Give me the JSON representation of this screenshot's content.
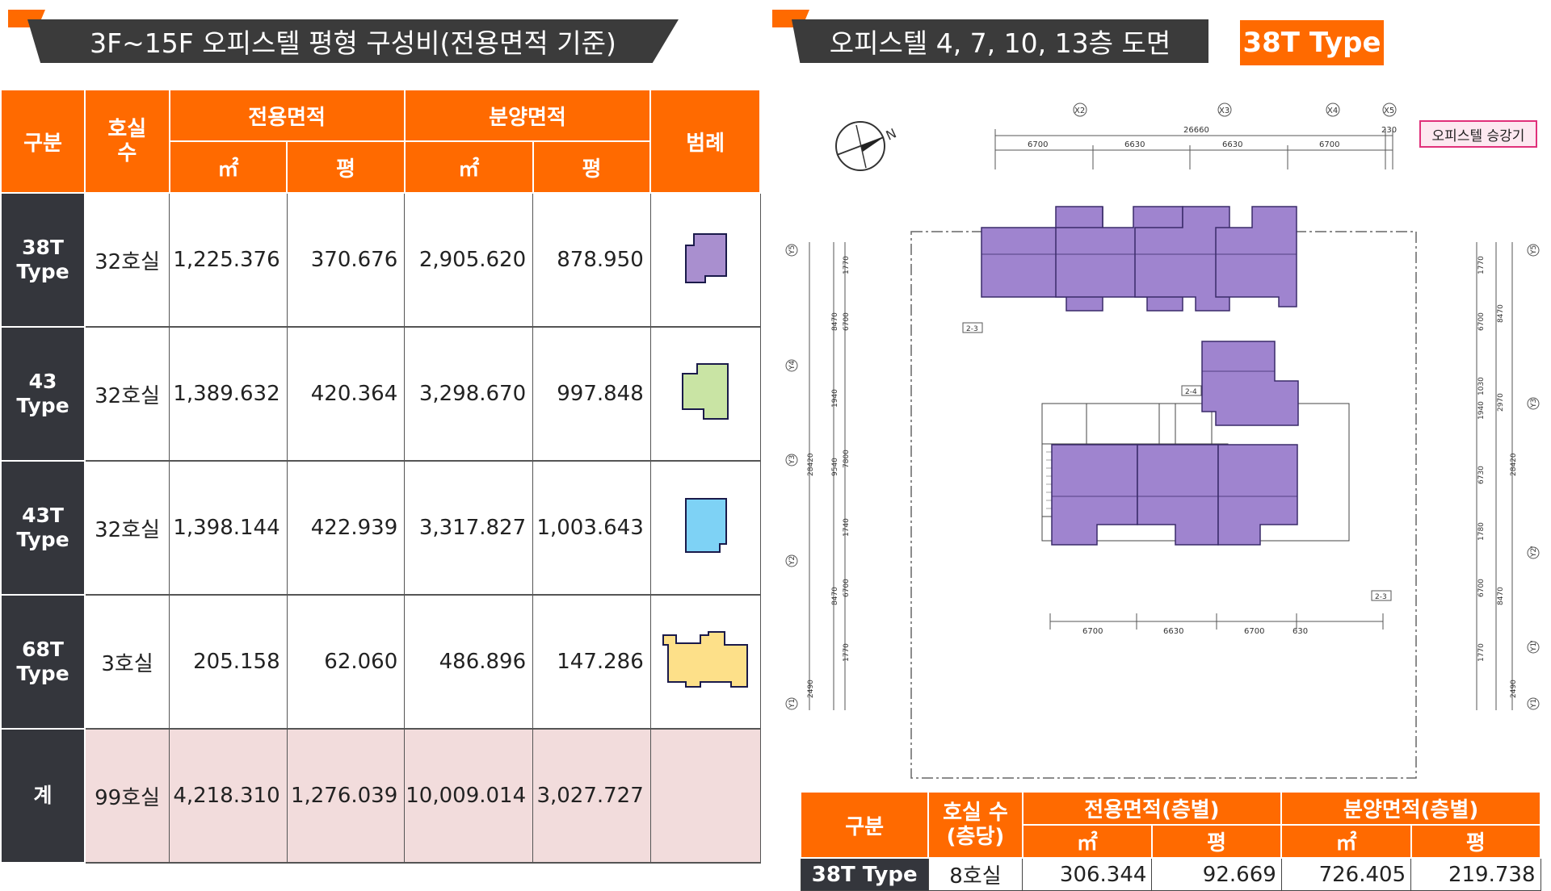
{
  "left_banner": {
    "title": "3F~15F 오피스텔 평형 구성비(전용면적 기준)"
  },
  "right_banner": {
    "title": "오피스텔 4, 7, 10, 13층 도면",
    "type_badge": "38T Type"
  },
  "main_table": {
    "headers": {
      "division": "구분",
      "rooms": "호실\n수",
      "exclusive_area": "전용면적",
      "sale_area": "분양면적",
      "legend": "범례",
      "sqm": "㎡",
      "pyeong": "평"
    },
    "rows": [
      {
        "type": "38T\nType",
        "rooms": "32호실",
        "excl_sqm": "1,225.376",
        "excl_py": "370.676",
        "sale_sqm": "2,905.620",
        "sale_py": "878.950",
        "legend_color": "#a98fcf"
      },
      {
        "type": "43\nType",
        "rooms": "32호실",
        "excl_sqm": "1,389.632",
        "excl_py": "420.364",
        "sale_sqm": "3,298.670",
        "sale_py": "997.848",
        "legend_color": "#c9e4a4"
      },
      {
        "type": "43T\nType",
        "rooms": "32호실",
        "excl_sqm": "1,398.144",
        "excl_py": "422.939",
        "sale_sqm": "3,317.827",
        "sale_py": "1,003.643",
        "legend_color": "#7ed2f5"
      },
      {
        "type": "68T\nType",
        "rooms": "3호실",
        "excl_sqm": "205.158",
        "excl_py": "62.060",
        "sale_sqm": "486.896",
        "sale_py": "147.286",
        "legend_color": "#fde089"
      }
    ],
    "total": {
      "type": "계",
      "rooms": "99호실",
      "excl_sqm": "4,218.310",
      "excl_py": "1,276.039",
      "sale_sqm": "10,009.014",
      "sale_py": "3,027.727"
    }
  },
  "floor_plan": {
    "legend_label": "오피스텔 승강기",
    "unit_color": "#9f84cf",
    "top_dims": {
      "total": "26660",
      "spans": [
        "6700",
        "6630",
        "6630",
        "6700"
      ],
      "right": "230"
    },
    "bottom_dims": {
      "spans": [
        "6700",
        "6630",
        "6700",
        "630"
      ]
    },
    "grid_top": [
      "X2",
      "X3",
      "X4",
      "X5"
    ],
    "grid_left": [
      "Y5",
      "Y4",
      "Y3",
      "Y2",
      "Y1"
    ],
    "grid_right": [
      "Y5",
      "Y3",
      "Y2'",
      "Y1'",
      "Y1"
    ],
    "left_dims": [
      "1770",
      "6700",
      "8470",
      "1940",
      "9540",
      "7800",
      "28420",
      "1740",
      "6700",
      "8470",
      "1770",
      "2490"
    ],
    "right_dims": [
      "1770",
      "6700",
      "8470",
      "1030",
      "1940",
      "2970",
      "6730",
      "28420",
      "1780",
      "6700",
      "8470",
      "1770",
      "2490"
    ],
    "tags": [
      "2-3",
      "2-4",
      "2-3"
    ],
    "north": "N"
  },
  "bottom_table": {
    "headers": {
      "division": "구분",
      "rooms": "호실 수\n(층당)",
      "exclusive": "전용면적(층별)",
      "sale": "분양면적(층별)",
      "sqm": "㎡",
      "pyeong": "평"
    },
    "row": {
      "type": "38T Type",
      "rooms": "8호실",
      "excl_sqm": "306.344",
      "excl_py": "92.669",
      "sale_sqm": "726.405",
      "sale_py": "219.738"
    }
  }
}
